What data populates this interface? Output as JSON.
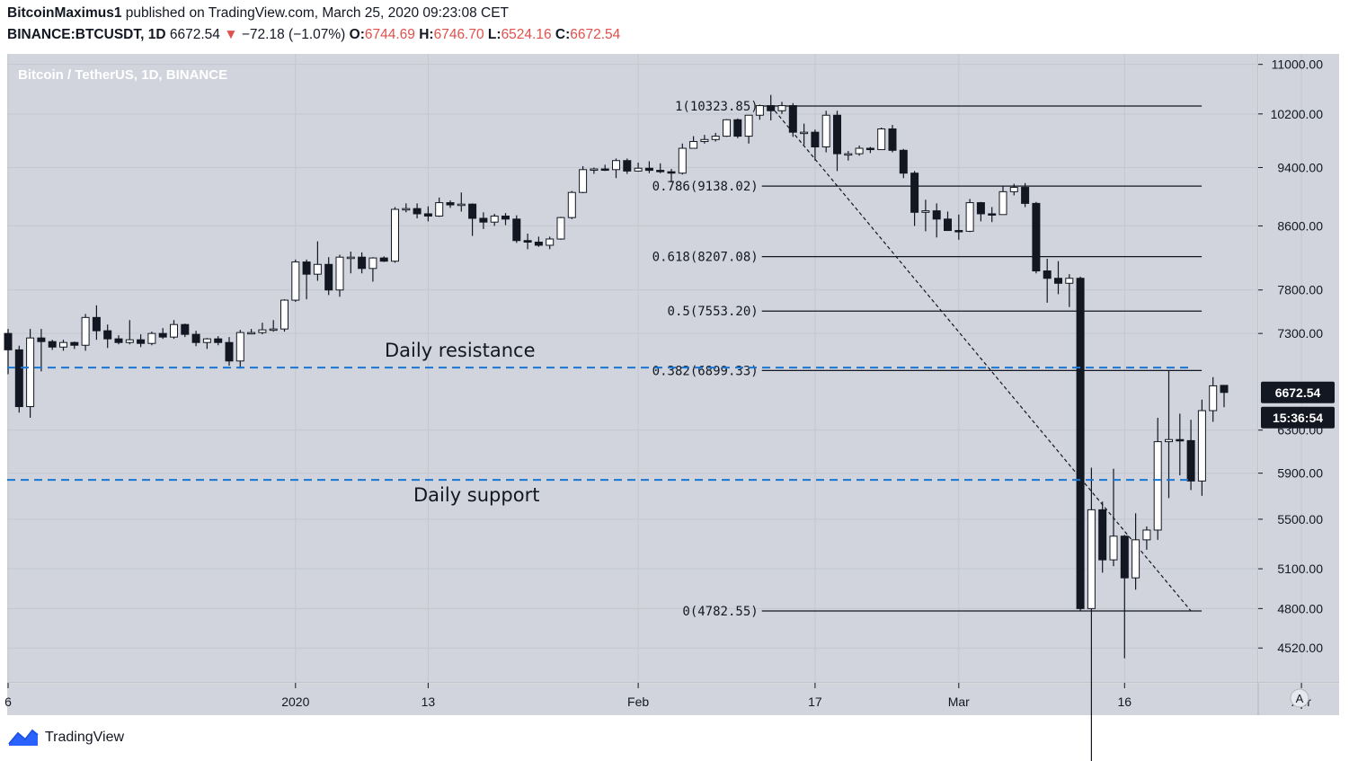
{
  "header": {
    "author": "BitcoinMaximus1",
    "published_text": "published on TradingView.com, March 25, 2020 09:23:08 CET",
    "symbol": "BINANCE:BTCUSDT, 1D",
    "price": "6672.54",
    "change_arrow": "▼",
    "change": "−72.18 (−1.07%)",
    "o_label": "O:",
    "o_value": "6744.69",
    "h_label": "H:",
    "h_value": "6746.70",
    "l_label": "L:",
    "l_value": "6524.16",
    "c_label": "C:",
    "c_value": "6672.54"
  },
  "footer": {
    "brand": "TradingView"
  },
  "chart_data": {
    "type": "candlestick",
    "title": "Bitcoin / TetherUS, 1D, BINANCE",
    "colors": {
      "background": "#d1d4dc",
      "up_body": "#ffffff",
      "down_body": "#131722",
      "wick": "#131722",
      "level_line": "#1976d2",
      "last_price_bg": "#131722",
      "last_price_text": "#ffffff"
    },
    "y_axis": {
      "scale": "log",
      "ticks": [
        "11000.00",
        "10200.00",
        "9400.00",
        "8600.00",
        "7800.00",
        "7300.00",
        "6300.00",
        "5900.00",
        "5500.00",
        "5100.00",
        "4800.00",
        "4520.00"
      ],
      "last_price_label": "6672.54",
      "countdown_label": "15:36:54",
      "scale_button": "A"
    },
    "x_axis": {
      "ticks": [
        {
          "label": "6",
          "date": "2019-12-06"
        },
        {
          "label": "2020",
          "date": "2020-01-01"
        },
        {
          "label": "13",
          "date": "2020-01-13"
        },
        {
          "label": "Feb",
          "date": "2020-02-01"
        },
        {
          "label": "17",
          "date": "2020-02-17"
        },
        {
          "label": "Mar",
          "date": "2020-03-01"
        },
        {
          "label": "16",
          "date": "2020-03-16"
        },
        {
          "label": "Apr",
          "date": "2020-04-01"
        }
      ]
    },
    "candles": [
      {
        "date": "2019-12-06",
        "o": 7300,
        "h": 7350,
        "l": 6860,
        "c": 7120
      },
      {
        "date": "2019-12-07",
        "o": 7120,
        "h": 7165,
        "l": 6470,
        "c": 6530
      },
      {
        "date": "2019-12-08",
        "o": 6530,
        "h": 7350,
        "l": 6420,
        "c": 7250
      },
      {
        "date": "2019-12-09",
        "o": 7250,
        "h": 7350,
        "l": 6890,
        "c": 7210
      },
      {
        "date": "2019-12-10",
        "o": 7210,
        "h": 7230,
        "l": 7120,
        "c": 7150
      },
      {
        "date": "2019-12-11",
        "o": 7150,
        "h": 7230,
        "l": 7110,
        "c": 7200
      },
      {
        "date": "2019-12-12",
        "o": 7200,
        "h": 7210,
        "l": 7130,
        "c": 7170
      },
      {
        "date": "2019-12-13",
        "o": 7170,
        "h": 7520,
        "l": 7110,
        "c": 7480
      },
      {
        "date": "2019-12-14",
        "o": 7480,
        "h": 7620,
        "l": 7230,
        "c": 7330
      },
      {
        "date": "2019-12-15",
        "o": 7330,
        "h": 7400,
        "l": 7140,
        "c": 7240
      },
      {
        "date": "2019-12-16",
        "o": 7240,
        "h": 7280,
        "l": 7180,
        "c": 7200
      },
      {
        "date": "2019-12-17",
        "o": 7200,
        "h": 7450,
        "l": 7180,
        "c": 7230
      },
      {
        "date": "2019-12-18",
        "o": 7230,
        "h": 7290,
        "l": 7150,
        "c": 7190
      },
      {
        "date": "2019-12-19",
        "o": 7190,
        "h": 7320,
        "l": 7170,
        "c": 7300
      },
      {
        "date": "2019-12-20",
        "o": 7300,
        "h": 7360,
        "l": 7240,
        "c": 7260
      },
      {
        "date": "2019-12-21",
        "o": 7260,
        "h": 7450,
        "l": 7240,
        "c": 7400
      },
      {
        "date": "2019-12-22",
        "o": 7400,
        "h": 7410,
        "l": 7260,
        "c": 7290
      },
      {
        "date": "2019-12-23",
        "o": 7290,
        "h": 7330,
        "l": 7160,
        "c": 7200
      },
      {
        "date": "2019-12-24",
        "o": 7200,
        "h": 7250,
        "l": 7130,
        "c": 7240
      },
      {
        "date": "2019-12-25",
        "o": 7240,
        "h": 7270,
        "l": 7170,
        "c": 7200
      },
      {
        "date": "2019-12-26",
        "o": 7200,
        "h": 7260,
        "l": 6950,
        "c": 7000
      },
      {
        "date": "2019-12-27",
        "o": 7000,
        "h": 7340,
        "l": 6920,
        "c": 7310
      },
      {
        "date": "2019-12-28",
        "o": 7310,
        "h": 7350,
        "l": 7290,
        "c": 7310
      },
      {
        "date": "2019-12-29",
        "o": 7310,
        "h": 7420,
        "l": 7290,
        "c": 7340
      },
      {
        "date": "2019-12-30",
        "o": 7340,
        "h": 7450,
        "l": 7320,
        "c": 7350
      },
      {
        "date": "2019-12-31",
        "o": 7350,
        "h": 7690,
        "l": 7320,
        "c": 7680
      },
      {
        "date": "2020-01-01",
        "o": 7680,
        "h": 8170,
        "l": 7660,
        "c": 8140
      },
      {
        "date": "2020-01-02",
        "o": 8140,
        "h": 8170,
        "l": 7690,
        "c": 7990
      },
      {
        "date": "2020-01-03",
        "o": 7990,
        "h": 8400,
        "l": 7910,
        "c": 8110
      },
      {
        "date": "2020-01-04",
        "o": 8110,
        "h": 8200,
        "l": 7740,
        "c": 7800
      },
      {
        "date": "2020-01-05",
        "o": 7800,
        "h": 8230,
        "l": 7720,
        "c": 8200
      },
      {
        "date": "2020-01-06",
        "o": 8200,
        "h": 8270,
        "l": 8000,
        "c": 8200
      },
      {
        "date": "2020-01-07",
        "o": 8200,
        "h": 8260,
        "l": 8000,
        "c": 8060
      },
      {
        "date": "2020-01-08",
        "o": 8060,
        "h": 8200,
        "l": 7900,
        "c": 8190
      },
      {
        "date": "2020-01-09",
        "o": 8190,
        "h": 8210,
        "l": 8140,
        "c": 8150
      },
      {
        "date": "2020-01-10",
        "o": 8150,
        "h": 8850,
        "l": 8130,
        "c": 8820
      },
      {
        "date": "2020-01-11",
        "o": 8820,
        "h": 8900,
        "l": 8780,
        "c": 8830
      },
      {
        "date": "2020-01-12",
        "o": 8830,
        "h": 8900,
        "l": 8700,
        "c": 8760
      },
      {
        "date": "2020-01-13",
        "o": 8760,
        "h": 8860,
        "l": 8660,
        "c": 8730
      },
      {
        "date": "2020-01-14",
        "o": 8730,
        "h": 8980,
        "l": 8720,
        "c": 8910
      },
      {
        "date": "2020-01-15",
        "o": 8910,
        "h": 8940,
        "l": 8840,
        "c": 8880
      },
      {
        "date": "2020-01-16",
        "o": 8880,
        "h": 9050,
        "l": 8790,
        "c": 8890
      },
      {
        "date": "2020-01-17",
        "o": 8890,
        "h": 8900,
        "l": 8470,
        "c": 8700
      },
      {
        "date": "2020-01-18",
        "o": 8700,
        "h": 8780,
        "l": 8560,
        "c": 8650
      },
      {
        "date": "2020-01-19",
        "o": 8650,
        "h": 8760,
        "l": 8600,
        "c": 8730
      },
      {
        "date": "2020-01-20",
        "o": 8730,
        "h": 8770,
        "l": 8610,
        "c": 8690
      },
      {
        "date": "2020-01-21",
        "o": 8690,
        "h": 8740,
        "l": 8380,
        "c": 8410
      },
      {
        "date": "2020-01-22",
        "o": 8410,
        "h": 8500,
        "l": 8300,
        "c": 8390
      },
      {
        "date": "2020-01-23",
        "o": 8390,
        "h": 8460,
        "l": 8330,
        "c": 8350
      },
      {
        "date": "2020-01-24",
        "o": 8350,
        "h": 8460,
        "l": 8300,
        "c": 8430
      },
      {
        "date": "2020-01-25",
        "o": 8430,
        "h": 8720,
        "l": 8420,
        "c": 8710
      },
      {
        "date": "2020-01-26",
        "o": 8710,
        "h": 9070,
        "l": 8690,
        "c": 9050
      },
      {
        "date": "2020-01-27",
        "o": 9050,
        "h": 9420,
        "l": 9040,
        "c": 9370
      },
      {
        "date": "2020-01-28",
        "o": 9370,
        "h": 9400,
        "l": 9310,
        "c": 9380
      },
      {
        "date": "2020-01-29",
        "o": 9380,
        "h": 9440,
        "l": 9350,
        "c": 9370
      },
      {
        "date": "2020-01-30",
        "o": 9370,
        "h": 9530,
        "l": 9250,
        "c": 9500
      },
      {
        "date": "2020-01-31",
        "o": 9500,
        "h": 9530,
        "l": 9310,
        "c": 9350
      },
      {
        "date": "2020-02-01",
        "o": 9350,
        "h": 9470,
        "l": 9340,
        "c": 9390
      },
      {
        "date": "2020-02-02",
        "o": 9390,
        "h": 9490,
        "l": 9320,
        "c": 9360
      },
      {
        "date": "2020-02-03",
        "o": 9360,
        "h": 9460,
        "l": 9320,
        "c": 9340
      },
      {
        "date": "2020-02-04",
        "o": 9340,
        "h": 9380,
        "l": 9190,
        "c": 9320
      },
      {
        "date": "2020-02-05",
        "o": 9320,
        "h": 9750,
        "l": 9300,
        "c": 9680
      },
      {
        "date": "2020-02-06",
        "o": 9680,
        "h": 9860,
        "l": 9680,
        "c": 9780
      },
      {
        "date": "2020-02-07",
        "o": 9780,
        "h": 9880,
        "l": 9750,
        "c": 9810
      },
      {
        "date": "2020-02-08",
        "o": 9810,
        "h": 9910,
        "l": 9780,
        "c": 9860
      },
      {
        "date": "2020-02-09",
        "o": 9860,
        "h": 10120,
        "l": 9850,
        "c": 10110
      },
      {
        "date": "2020-02-10",
        "o": 10110,
        "h": 10130,
        "l": 9830,
        "c": 9860
      },
      {
        "date": "2020-02-11",
        "o": 9860,
        "h": 10180,
        "l": 9750,
        "c": 10180
      },
      {
        "date": "2020-02-12",
        "o": 10180,
        "h": 10345,
        "l": 10110,
        "c": 10330
      },
      {
        "date": "2020-02-13",
        "o": 10330,
        "h": 10500,
        "l": 10100,
        "c": 10250
      },
      {
        "date": "2020-02-14",
        "o": 10250,
        "h": 10390,
        "l": 10200,
        "c": 10330
      },
      {
        "date": "2020-02-15",
        "o": 10330,
        "h": 10370,
        "l": 9850,
        "c": 9920
      },
      {
        "date": "2020-02-16",
        "o": 9920,
        "h": 10050,
        "l": 9730,
        "c": 9920
      },
      {
        "date": "2020-02-17",
        "o": 9920,
        "h": 9960,
        "l": 9500,
        "c": 9700
      },
      {
        "date": "2020-02-18",
        "o": 9700,
        "h": 10250,
        "l": 9620,
        "c": 10180
      },
      {
        "date": "2020-02-19",
        "o": 10180,
        "h": 10250,
        "l": 9350,
        "c": 9600
      },
      {
        "date": "2020-02-20",
        "o": 9600,
        "h": 9640,
        "l": 9500,
        "c": 9600
      },
      {
        "date": "2020-02-21",
        "o": 9600,
        "h": 9720,
        "l": 9570,
        "c": 9680
      },
      {
        "date": "2020-02-22",
        "o": 9680,
        "h": 9700,
        "l": 9610,
        "c": 9660
      },
      {
        "date": "2020-02-23",
        "o": 9660,
        "h": 9990,
        "l": 9660,
        "c": 9970
      },
      {
        "date": "2020-02-24",
        "o": 9970,
        "h": 10030,
        "l": 9620,
        "c": 9650
      },
      {
        "date": "2020-02-25",
        "o": 9650,
        "h": 9670,
        "l": 9250,
        "c": 9320
      },
      {
        "date": "2020-02-26",
        "o": 9320,
        "h": 9350,
        "l": 8600,
        "c": 8780
      },
      {
        "date": "2020-02-27",
        "o": 8780,
        "h": 8950,
        "l": 8530,
        "c": 8800
      },
      {
        "date": "2020-02-28",
        "o": 8800,
        "h": 8900,
        "l": 8450,
        "c": 8690
      },
      {
        "date": "2020-02-29",
        "o": 8690,
        "h": 8790,
        "l": 8570,
        "c": 8540
      },
      {
        "date": "2020-03-01",
        "o": 8540,
        "h": 8750,
        "l": 8420,
        "c": 8530
      },
      {
        "date": "2020-03-02",
        "o": 8530,
        "h": 8960,
        "l": 8520,
        "c": 8910
      },
      {
        "date": "2020-03-03",
        "o": 8910,
        "h": 8920,
        "l": 8660,
        "c": 8760
      },
      {
        "date": "2020-03-04",
        "o": 8760,
        "h": 8850,
        "l": 8650,
        "c": 8750
      },
      {
        "date": "2020-03-05",
        "o": 8750,
        "h": 9140,
        "l": 8750,
        "c": 9060
      },
      {
        "date": "2020-03-06",
        "o": 9060,
        "h": 9170,
        "l": 9010,
        "c": 9120
      },
      {
        "date": "2020-03-07",
        "o": 9120,
        "h": 9180,
        "l": 8850,
        "c": 8900
      },
      {
        "date": "2020-03-08",
        "o": 8900,
        "h": 8920,
        "l": 8000,
        "c": 8030
      },
      {
        "date": "2020-03-09",
        "o": 8030,
        "h": 8180,
        "l": 7650,
        "c": 7940
      },
      {
        "date": "2020-03-10",
        "o": 7940,
        "h": 8150,
        "l": 7750,
        "c": 7880
      },
      {
        "date": "2020-03-11",
        "o": 7880,
        "h": 7990,
        "l": 7600,
        "c": 7940
      },
      {
        "date": "2020-03-12",
        "o": 7940,
        "h": 7960,
        "l": 4780,
        "c": 4800
      },
      {
        "date": "2020-03-13",
        "o": 4800,
        "h": 5950,
        "l": 3800,
        "c": 5580
      },
      {
        "date": "2020-03-14",
        "o": 5580,
        "h": 5650,
        "l": 5070,
        "c": 5170
      },
      {
        "date": "2020-03-15",
        "o": 5170,
        "h": 5940,
        "l": 5120,
        "c": 5360
      },
      {
        "date": "2020-03-16",
        "o": 5360,
        "h": 5370,
        "l": 4450,
        "c": 5030
      },
      {
        "date": "2020-03-17",
        "o": 5030,
        "h": 5550,
        "l": 4940,
        "c": 5330
      },
      {
        "date": "2020-03-18",
        "o": 5330,
        "h": 5440,
        "l": 5250,
        "c": 5410
      },
      {
        "date": "2020-03-19",
        "o": 5410,
        "h": 6420,
        "l": 5330,
        "c": 6190
      },
      {
        "date": "2020-03-20",
        "o": 6190,
        "h": 6900,
        "l": 5680,
        "c": 6210
      },
      {
        "date": "2020-03-21",
        "o": 6210,
        "h": 6460,
        "l": 5880,
        "c": 6200
      },
      {
        "date": "2020-03-22",
        "o": 6200,
        "h": 6400,
        "l": 5750,
        "c": 5830
      },
      {
        "date": "2020-03-23",
        "o": 5830,
        "h": 6600,
        "l": 5700,
        "c": 6490
      },
      {
        "date": "2020-03-24",
        "o": 6490,
        "h": 6830,
        "l": 6380,
        "c": 6740
      },
      {
        "date": "2020-03-25",
        "o": 6744.69,
        "h": 6746.7,
        "l": 6524.16,
        "c": 6672.54
      }
    ],
    "fib_levels": [
      {
        "label": "1(10323.85)",
        "value": 10323.85
      },
      {
        "label": "0.786(9138.02)",
        "value": 9138.02
      },
      {
        "label": "0.618(8207.08)",
        "value": 8207.08
      },
      {
        "label": "0.5(7553.20)",
        "value": 7553.2
      },
      {
        "label": "0.382(6899.33)",
        "value": 6899.33
      },
      {
        "label": "0(4782.55)",
        "value": 4782.55
      }
    ],
    "fib_trendline": {
      "from": {
        "date": "2020-02-13",
        "price": 10323.85
      },
      "to": {
        "date": "2020-03-22",
        "price": 4782.55
      }
    },
    "fib_range": {
      "start": "2020-02-13",
      "end": "2020-03-22"
    },
    "horizontal_levels": [
      {
        "label": "Daily resistance",
        "value": 6930,
        "style": "dashed"
      },
      {
        "label": "Daily support",
        "value": 5840,
        "style": "dashed"
      }
    ]
  }
}
